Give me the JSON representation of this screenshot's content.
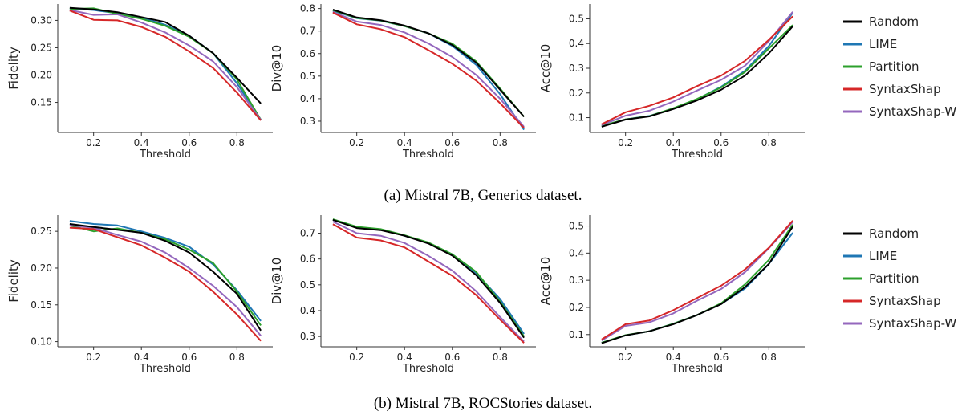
{
  "colors": {
    "Random": "#000000",
    "LIME": "#1f77b4",
    "Partition": "#2ca02c",
    "SyntaxShap": "#d62728",
    "SyntaxShap-W": "#9467bd"
  },
  "legend": [
    "Random",
    "LIME",
    "Partition",
    "SyntaxShap",
    "SyntaxShap-W"
  ],
  "rows": [
    {
      "caption": "(a) Mistral 7B, Generics dataset.",
      "charts": [
        {
          "type": "line",
          "xlabel": "Threshold",
          "ylabel": "Fidelity",
          "x": [
            0.1,
            0.2,
            0.3,
            0.4,
            0.5,
            0.6,
            0.7,
            0.8,
            0.9
          ],
          "xticks": [
            0.2,
            0.4,
            0.6,
            0.8
          ],
          "xticklabels": [
            "0.2",
            "0.4",
            "0.6",
            "0.8"
          ],
          "xlim": [
            0.05,
            0.95
          ],
          "ylim": [
            0.095,
            0.33
          ],
          "yticks": [
            0.15,
            0.2,
            0.25,
            0.3
          ],
          "yticklabels": [
            "0.15",
            "0.20",
            "0.25",
            "0.30"
          ],
          "series": [
            {
              "name": "Random",
              "values": [
                0.323,
                0.32,
                0.315,
                0.306,
                0.297,
                0.272,
                0.24,
                0.195,
                0.148
              ]
            },
            {
              "name": "LIME",
              "values": [
                0.322,
                0.319,
                0.313,
                0.305,
                0.292,
                0.272,
                0.24,
                0.185,
                0.118
              ]
            },
            {
              "name": "Partition",
              "values": [
                0.321,
                0.322,
                0.312,
                0.303,
                0.29,
                0.27,
                0.24,
                0.192,
                0.118
              ]
            },
            {
              "name": "SyntaxShap",
              "values": [
                0.318,
                0.301,
                0.3,
                0.288,
                0.27,
                0.243,
                0.213,
                0.168,
                0.117
              ]
            },
            {
              "name": "SyntaxShap-W",
              "values": [
                0.319,
                0.31,
                0.311,
                0.296,
                0.278,
                0.254,
                0.225,
                0.178,
                0.118
              ]
            }
          ]
        },
        {
          "type": "line",
          "xlabel": "Threshold",
          "ylabel": "Div@10",
          "x": [
            0.1,
            0.2,
            0.3,
            0.4,
            0.5,
            0.6,
            0.7,
            0.8,
            0.9
          ],
          "xticks": [
            0.2,
            0.4,
            0.6,
            0.8
          ],
          "xticklabels": [
            "0.2",
            "0.4",
            "0.6",
            "0.8"
          ],
          "xlim": [
            0.05,
            0.95
          ],
          "ylim": [
            0.25,
            0.82
          ],
          "yticks": [
            0.3,
            0.4,
            0.5,
            0.6,
            0.7,
            0.8
          ],
          "yticklabels": [
            "0.3",
            "0.4",
            "0.5",
            "0.6",
            "0.7",
            "0.8"
          ],
          "series": [
            {
              "name": "Random",
              "values": [
                0.795,
                0.76,
                0.748,
                0.724,
                0.69,
                0.638,
                0.56,
                0.44,
                0.32
              ]
            },
            {
              "name": "LIME",
              "values": [
                0.79,
                0.757,
                0.746,
                0.722,
                0.69,
                0.634,
                0.55,
                0.42,
                0.262
              ]
            },
            {
              "name": "Partition",
              "values": [
                0.793,
                0.758,
                0.747,
                0.722,
                0.69,
                0.644,
                0.565,
                0.445,
                0.32
              ]
            },
            {
              "name": "SyntaxShap",
              "values": [
                0.782,
                0.73,
                0.708,
                0.673,
                0.615,
                0.555,
                0.48,
                0.38,
                0.27
              ]
            },
            {
              "name": "SyntaxShap-W",
              "values": [
                0.785,
                0.742,
                0.727,
                0.694,
                0.645,
                0.585,
                0.505,
                0.4,
                0.275
              ]
            }
          ]
        },
        {
          "type": "line",
          "xlabel": "Threshold",
          "ylabel": "Acc@10",
          "x": [
            0.1,
            0.2,
            0.3,
            0.4,
            0.5,
            0.6,
            0.7,
            0.8,
            0.9
          ],
          "xticks": [
            0.2,
            0.4,
            0.6,
            0.8
          ],
          "xticklabels": [
            "0.2",
            "0.4",
            "0.6",
            "0.8"
          ],
          "xlim": [
            0.05,
            0.95
          ],
          "ylim": [
            0.04,
            0.56
          ],
          "yticks": [
            0.1,
            0.2,
            0.3,
            0.4,
            0.5
          ],
          "yticklabels": [
            "0.1",
            "0.2",
            "0.3",
            "0.4",
            "0.5"
          ],
          "series": [
            {
              "name": "Random",
              "values": [
                0.063,
                0.092,
                0.105,
                0.135,
                0.17,
                0.213,
                0.27,
                0.36,
                0.47
              ]
            },
            {
              "name": "LIME",
              "values": [
                0.066,
                0.093,
                0.107,
                0.137,
                0.175,
                0.225,
                0.29,
                0.39,
                0.525
              ]
            },
            {
              "name": "Partition",
              "values": [
                0.067,
                0.093,
                0.106,
                0.138,
                0.176,
                0.222,
                0.285,
                0.38,
                0.475
              ]
            },
            {
              "name": "SyntaxShap",
              "values": [
                0.073,
                0.122,
                0.148,
                0.182,
                0.228,
                0.27,
                0.33,
                0.415,
                0.51
              ]
            },
            {
              "name": "SyntaxShap-W",
              "values": [
                0.07,
                0.108,
                0.128,
                0.165,
                0.21,
                0.253,
                0.31,
                0.41,
                0.528
              ]
            }
          ]
        }
      ]
    },
    {
      "caption": "(b) Mistral 7B, ROCStories dataset.",
      "charts": [
        {
          "type": "line",
          "xlabel": "Threshold",
          "ylabel": "Fidelity",
          "x": [
            0.1,
            0.2,
            0.3,
            0.4,
            0.5,
            0.6,
            0.7,
            0.8,
            0.9
          ],
          "xticks": [
            0.2,
            0.4,
            0.6,
            0.8
          ],
          "xticklabels": [
            "0.2",
            "0.4",
            "0.6",
            "0.8"
          ],
          "xlim": [
            0.05,
            0.95
          ],
          "ylim": [
            0.093,
            0.272
          ],
          "yticks": [
            0.1,
            0.15,
            0.2,
            0.25
          ],
          "yticklabels": [
            "0.10",
            "0.15",
            "0.20",
            "0.25"
          ],
          "series": [
            {
              "name": "Random",
              "values": [
                0.26,
                0.256,
                0.252,
                0.248,
                0.237,
                0.221,
                0.195,
                0.165,
                0.115
              ]
            },
            {
              "name": "LIME",
              "values": [
                0.264,
                0.26,
                0.258,
                0.25,
                0.241,
                0.229,
                0.205,
                0.17,
                0.128
              ]
            },
            {
              "name": "Partition",
              "values": [
                0.258,
                0.25,
                0.254,
                0.248,
                0.239,
                0.225,
                0.207,
                0.168,
                0.122
              ]
            },
            {
              "name": "SyntaxShap",
              "values": [
                0.255,
                0.253,
                0.242,
                0.231,
                0.214,
                0.195,
                0.168,
                0.137,
                0.101
              ]
            },
            {
              "name": "SyntaxShap-W",
              "values": [
                0.258,
                0.255,
                0.245,
                0.236,
                0.221,
                0.2,
                0.176,
                0.147,
                0.108
              ]
            }
          ]
        },
        {
          "type": "line",
          "xlabel": "Threshold",
          "ylabel": "Div@10",
          "x": [
            0.1,
            0.2,
            0.3,
            0.4,
            0.5,
            0.6,
            0.7,
            0.8,
            0.9
          ],
          "xticks": [
            0.2,
            0.4,
            0.6,
            0.8
          ],
          "xticklabels": [
            "0.2",
            "0.4",
            "0.6",
            "0.8"
          ],
          "xlim": [
            0.05,
            0.95
          ],
          "ylim": [
            0.26,
            0.77
          ],
          "yticks": [
            0.3,
            0.4,
            0.5,
            0.6,
            0.7
          ],
          "yticklabels": [
            "0.3",
            "0.4",
            "0.5",
            "0.6",
            "0.7"
          ],
          "series": [
            {
              "name": "Random",
              "values": [
                0.752,
                0.72,
                0.712,
                0.69,
                0.66,
                0.613,
                0.537,
                0.43,
                0.295
              ]
            },
            {
              "name": "LIME",
              "values": [
                0.752,
                0.722,
                0.714,
                0.69,
                0.662,
                0.618,
                0.545,
                0.445,
                0.31
              ]
            },
            {
              "name": "Partition",
              "values": [
                0.754,
                0.725,
                0.716,
                0.692,
                0.664,
                0.618,
                0.55,
                0.435,
                0.3
              ]
            },
            {
              "name": "SyntaxShap",
              "values": [
                0.735,
                0.683,
                0.672,
                0.645,
                0.59,
                0.535,
                0.46,
                0.365,
                0.275
              ]
            },
            {
              "name": "SyntaxShap-W",
              "values": [
                0.745,
                0.7,
                0.69,
                0.662,
                0.612,
                0.555,
                0.475,
                0.375,
                0.28
              ]
            }
          ]
        },
        {
          "type": "line",
          "xlabel": "Threshold",
          "ylabel": "Acc@10",
          "x": [
            0.1,
            0.2,
            0.3,
            0.4,
            0.5,
            0.6,
            0.7,
            0.8,
            0.9
          ],
          "xticks": [
            0.2,
            0.4,
            0.6,
            0.8
          ],
          "xticklabels": [
            "0.2",
            "0.4",
            "0.6",
            "0.8"
          ],
          "xlim": [
            0.05,
            0.95
          ],
          "ylim": [
            0.055,
            0.54
          ],
          "yticks": [
            0.1,
            0.2,
            0.3,
            0.4,
            0.5
          ],
          "yticklabels": [
            "0.1",
            "0.2",
            "0.3",
            "0.4",
            "0.5"
          ],
          "series": [
            {
              "name": "Random",
              "values": [
                0.068,
                0.097,
                0.112,
                0.138,
                0.172,
                0.212,
                0.275,
                0.36,
                0.498
              ]
            },
            {
              "name": "LIME",
              "values": [
                0.07,
                0.097,
                0.112,
                0.14,
                0.172,
                0.213,
                0.27,
                0.36,
                0.475
              ]
            },
            {
              "name": "Partition",
              "values": [
                0.07,
                0.098,
                0.112,
                0.14,
                0.172,
                0.215,
                0.285,
                0.375,
                0.505
              ]
            },
            {
              "name": "SyntaxShap",
              "values": [
                0.082,
                0.138,
                0.152,
                0.19,
                0.235,
                0.28,
                0.34,
                0.42,
                0.52
              ]
            },
            {
              "name": "SyntaxShap-W",
              "values": [
                0.078,
                0.132,
                0.145,
                0.178,
                0.225,
                0.268,
                0.33,
                0.418,
                0.515
              ]
            }
          ]
        }
      ]
    }
  ]
}
